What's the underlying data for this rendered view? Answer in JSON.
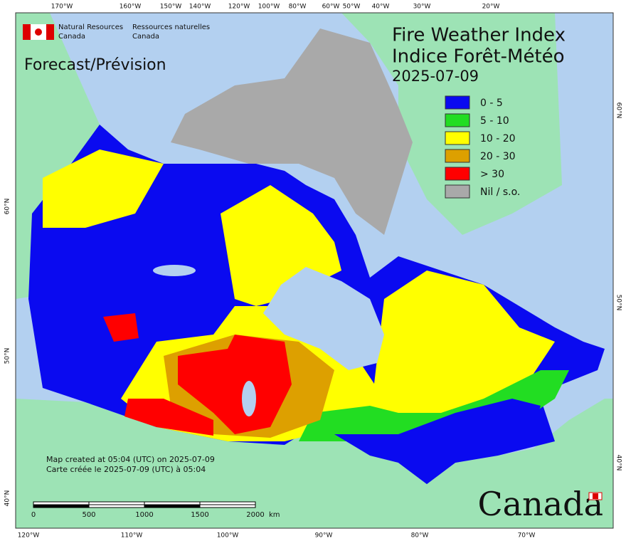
{
  "header": {
    "agency_en": [
      "Natural Resources",
      "Canada"
    ],
    "agency_fr": [
      "Ressources naturelles",
      "Canada"
    ]
  },
  "title": [
    "Fire Weather Index",
    "Indice Forêt-Météo"
  ],
  "date": "2025-07-09",
  "product": "Forecast/Prévision",
  "legend": [
    {
      "label": "0 - 5",
      "color": "#0a0af0"
    },
    {
      "label": "5 - 10",
      "color": "#22dd22"
    },
    {
      "label": "10 - 20",
      "color": "#ffff00"
    },
    {
      "label": "20 - 30",
      "color": "#dda000"
    },
    {
      "label": "> 30",
      "color": "#ff0000"
    },
    {
      "label": "Nil / s.o.",
      "color": "#a9a9a9"
    }
  ],
  "map": {
    "top_longitudes": [
      "170°W",
      "160°W",
      "150°W",
      "140°W",
      "120°W",
      "100°W",
      "80°W",
      "60°W",
      "50°W",
      "40°W",
      "30°W",
      "20°W"
    ],
    "bottom_longitudes": [
      "120°W",
      "110°W",
      "100°W",
      "90°W",
      "80°W",
      "70°W"
    ],
    "left_latitudes": [
      "60°N",
      "50°N",
      "40°N"
    ],
    "right_latitudes": [
      "60°N",
      "50°N",
      "40°N"
    ]
  },
  "credits": [
    "Map created at 05:04 (UTC) on 2025-07-09",
    "Carte créée le 2025-07-09 (UTC) à 05:04"
  ],
  "scale": {
    "labels": [
      "0",
      "500",
      "1000",
      "1500",
      "2000"
    ],
    "unit": "km"
  },
  "wordmark": "Canada"
}
